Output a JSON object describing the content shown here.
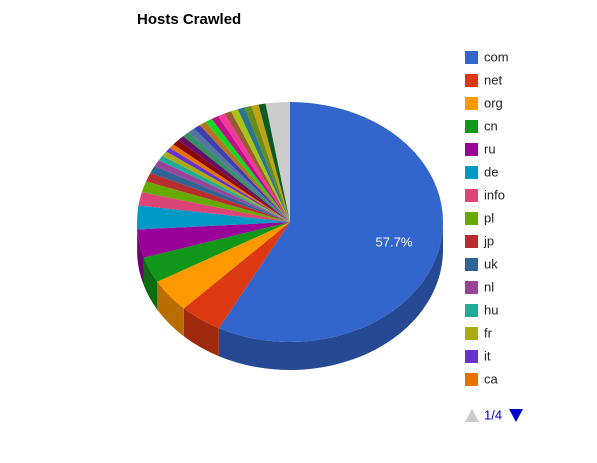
{
  "chart_data": {
    "type": "pie3d",
    "title": "Hosts Crawled",
    "categories": [
      "com",
      "net",
      "org",
      "cn",
      "ru",
      "de",
      "info",
      "pl",
      "jp",
      "uk",
      "nl",
      "hu",
      "fr",
      "it",
      "ca",
      null,
      null,
      null,
      null,
      null,
      null,
      null,
      null,
      null,
      null,
      null,
      null,
      null,
      null,
      null,
      null
    ],
    "values": [
      57.7,
      4.5,
      4.5,
      3.5,
      3.8,
      3.2,
      1.8,
      1.5,
      1.2,
      1.0,
      0.9,
      0.7,
      0.7,
      0.6,
      0.6,
      0.75,
      0.75,
      0.75,
      0.75,
      0.75,
      0.75,
      0.75,
      0.75,
      0.75,
      0.75,
      0.75,
      0.75,
      0.75,
      0.75,
      0.75,
      2.55
    ],
    "value_labels": [
      "57.7%",
      null,
      null,
      null,
      null,
      null,
      null,
      null,
      null,
      null,
      null,
      null,
      null,
      null,
      null,
      null,
      null,
      null,
      null,
      null,
      null,
      null,
      null,
      null,
      null,
      null,
      null,
      null,
      null,
      null,
      null
    ],
    "colors": [
      "#3366cc",
      "#dc3912",
      "#ff9900",
      "#109618",
      "#990099",
      "#0099c6",
      "#dd4477",
      "#66aa00",
      "#b82e2e",
      "#316395",
      "#994499",
      "#22aa99",
      "#aaaa11",
      "#6633cc",
      "#e67300",
      "#8b0707",
      "#651067",
      "#329262",
      "#5574a6",
      "#3b3eac",
      "#b77322",
      "#16d620",
      "#b91383",
      "#f4359e",
      "#9c5935",
      "#a9c413",
      "#2a778d",
      "#668d1c",
      "#bea413",
      "#0c5922",
      "#cccccc"
    ],
    "legend_page": "1/4"
  }
}
